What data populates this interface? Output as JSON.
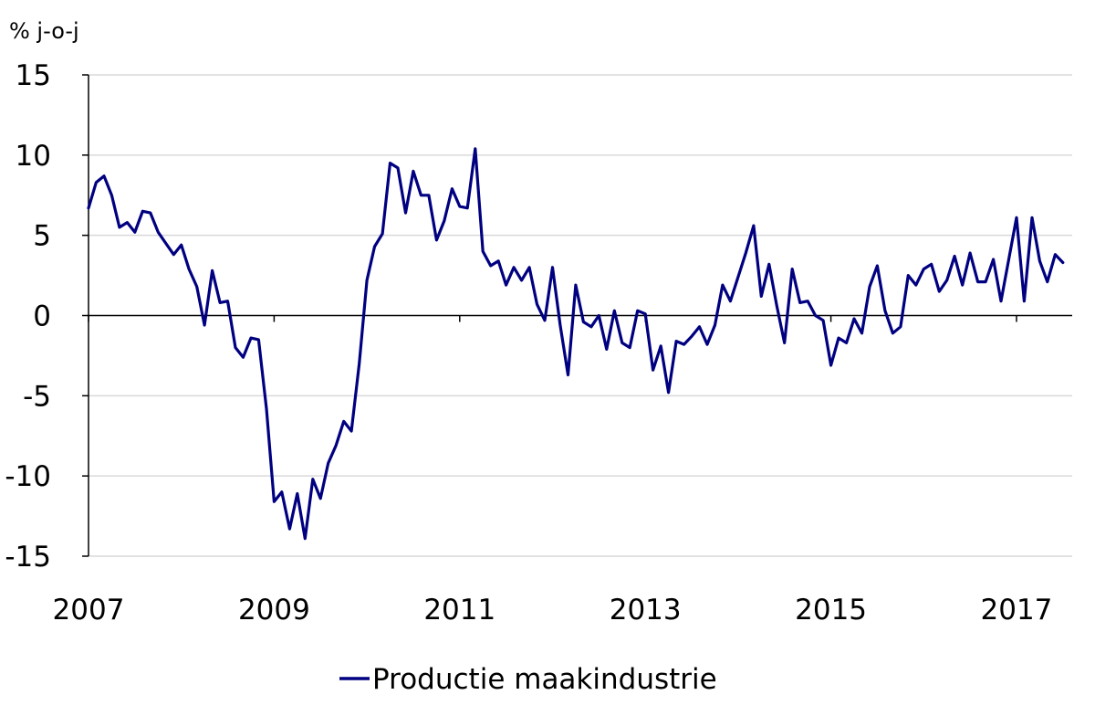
{
  "chart_data": {
    "type": "line",
    "unit_label": "% j-o-j",
    "xlabel": "",
    "ylabel": "",
    "ylim": [
      -15,
      15
    ],
    "yticks": [
      15,
      10,
      5,
      0,
      -5,
      -10,
      -15
    ],
    "yticklabels": [
      "15",
      "10",
      "5",
      "0",
      "-5",
      "-10",
      "-15"
    ],
    "xlim": [
      2007,
      2017.6
    ],
    "xticks": [
      2007,
      2009,
      2011,
      2013,
      2015,
      2017
    ],
    "xticklabels": [
      "2007",
      "2009",
      "2011",
      "2013",
      "2015",
      "2017"
    ],
    "grid": "horizontal",
    "legend_position": "bottom-center",
    "colors": {
      "series": "#000080",
      "grid": "#d9d9d9",
      "axis": "#000000"
    },
    "series": [
      {
        "name": "Productie maakindustrie",
        "x": [
          2007.0,
          2007.083,
          2007.167,
          2007.25,
          2007.333,
          2007.417,
          2007.5,
          2007.583,
          2007.667,
          2007.75,
          2007.833,
          2007.917,
          2008.0,
          2008.083,
          2008.167,
          2008.25,
          2008.333,
          2008.417,
          2008.5,
          2008.583,
          2008.667,
          2008.75,
          2008.833,
          2008.917,
          2009.0,
          2009.083,
          2009.167,
          2009.25,
          2009.333,
          2009.417,
          2009.5,
          2009.583,
          2009.667,
          2009.75,
          2009.833,
          2009.917,
          2010.0,
          2010.083,
          2010.167,
          2010.25,
          2010.333,
          2010.417,
          2010.5,
          2010.583,
          2010.667,
          2010.75,
          2010.833,
          2010.917,
          2011.0,
          2011.083,
          2011.167,
          2011.25,
          2011.333,
          2011.417,
          2011.5,
          2011.583,
          2011.667,
          2011.75,
          2011.833,
          2011.917,
          2012.0,
          2012.083,
          2012.167,
          2012.25,
          2012.333,
          2012.417,
          2012.5,
          2012.583,
          2012.667,
          2012.75,
          2012.833,
          2012.917,
          2013.0,
          2013.083,
          2013.167,
          2013.25,
          2013.333,
          2013.417,
          2013.5,
          2013.583,
          2013.667,
          2013.75,
          2013.833,
          2013.917,
          2014.0,
          2014.083,
          2014.167,
          2014.25,
          2014.333,
          2014.417,
          2014.5,
          2014.583,
          2014.667,
          2014.75,
          2014.833,
          2014.917,
          2015.0,
          2015.083,
          2015.167,
          2015.25,
          2015.333,
          2015.417,
          2015.5,
          2015.583,
          2015.667,
          2015.75,
          2015.833,
          2015.917,
          2016.0,
          2016.083,
          2016.167,
          2016.25,
          2016.333,
          2016.417,
          2016.5,
          2016.583,
          2016.667,
          2016.75,
          2016.833,
          2016.917,
          2017.0,
          2017.083,
          2017.167,
          2017.25,
          2017.333,
          2017.417,
          2017.5
        ],
        "y": [
          6.7,
          8.3,
          8.7,
          7.5,
          5.5,
          5.8,
          5.2,
          6.5,
          6.4,
          5.2,
          4.5,
          3.8,
          4.4,
          2.9,
          1.8,
          -0.6,
          2.8,
          0.8,
          0.9,
          -2.0,
          -2.6,
          -1.4,
          -1.5,
          -5.8,
          -11.6,
          -11.0,
          -13.3,
          -11.1,
          -13.9,
          -10.2,
          -11.4,
          -9.2,
          -8.1,
          -6.6,
          -7.2,
          -3.0,
          2.2,
          4.3,
          5.1,
          9.5,
          9.2,
          6.4,
          9.0,
          7.5,
          7.5,
          4.7,
          5.9,
          7.9,
          6.8,
          6.7,
          10.4,
          4.0,
          3.1,
          3.4,
          1.9,
          3.0,
          2.2,
          3.0,
          0.7,
          -0.3,
          3.0,
          -0.6,
          -3.7,
          1.9,
          -0.4,
          -0.7,
          0.0,
          -2.1,
          0.3,
          -1.7,
          -2.0,
          0.3,
          0.1,
          -3.4,
          -1.9,
          -4.8,
          -1.6,
          -1.8,
          -1.3,
          -0.7,
          -1.8,
          -0.6,
          1.9,
          0.9,
          2.4,
          3.9,
          5.6,
          1.2,
          3.2,
          0.6,
          -1.7,
          2.9,
          0.8,
          0.9,
          0.0,
          -0.3,
          -3.1,
          -1.4,
          -1.7,
          -0.2,
          -1.1,
          1.8,
          3.1,
          0.3,
          -1.1,
          -0.7,
          2.5,
          1.9,
          2.9,
          3.2,
          1.5,
          2.2,
          3.7,
          1.9,
          3.9,
          2.1,
          2.1,
          3.5,
          0.9,
          3.5,
          6.1,
          0.9,
          6.1,
          3.4,
          2.1,
          3.8,
          3.3
        ]
      }
    ]
  }
}
